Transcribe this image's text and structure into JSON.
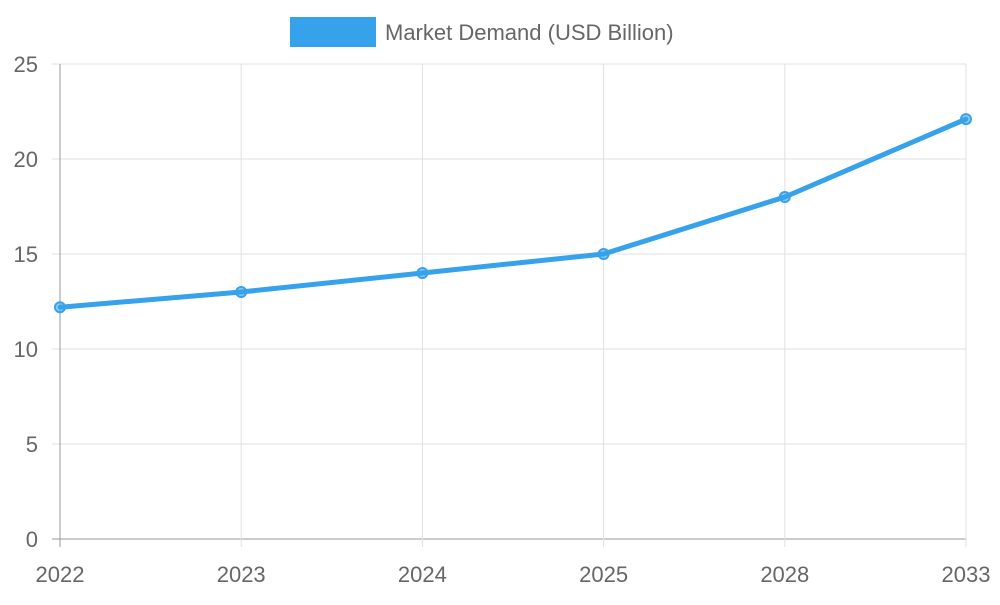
{
  "chart_data": {
    "type": "line",
    "title": "",
    "xlabel": "",
    "ylabel": "",
    "categories": [
      "2022",
      "2023",
      "2024",
      "2025",
      "2028",
      "2033"
    ],
    "series": [
      {
        "name": "Market Demand (USD Billion)",
        "values": [
          12.2,
          13,
          14,
          15,
          18,
          22.1
        ],
        "color": "#36A2EB"
      }
    ],
    "ylim": [
      0,
      25
    ],
    "yticks": [
      0,
      5,
      10,
      15,
      20,
      25
    ],
    "grid": true,
    "legend": "top"
  }
}
